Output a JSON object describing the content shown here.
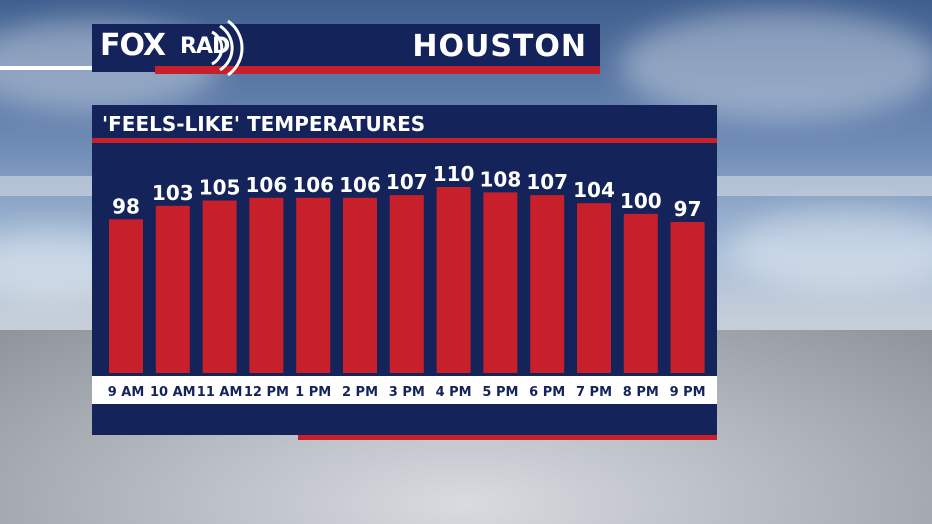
{
  "header": {
    "logo_fox": "FOX",
    "logo_rad": "RAD",
    "city": "HOUSTON"
  },
  "colors": {
    "navy": "#14245a",
    "red": "#c8202a",
    "white": "#ffffff"
  },
  "chart_data": {
    "type": "bar",
    "title": "'FEELS-LIKE' TEMPERATURES",
    "categories": [
      "9 AM",
      "10 AM",
      "11 AM",
      "12 PM",
      "1 PM",
      "2 PM",
      "3 PM",
      "4 PM",
      "5 PM",
      "6 PM",
      "7 PM",
      "8 PM",
      "9 PM"
    ],
    "values": [
      98,
      103,
      105,
      106,
      106,
      106,
      107,
      110,
      108,
      107,
      104,
      100,
      97
    ],
    "grid": false,
    "legend": "none"
  }
}
